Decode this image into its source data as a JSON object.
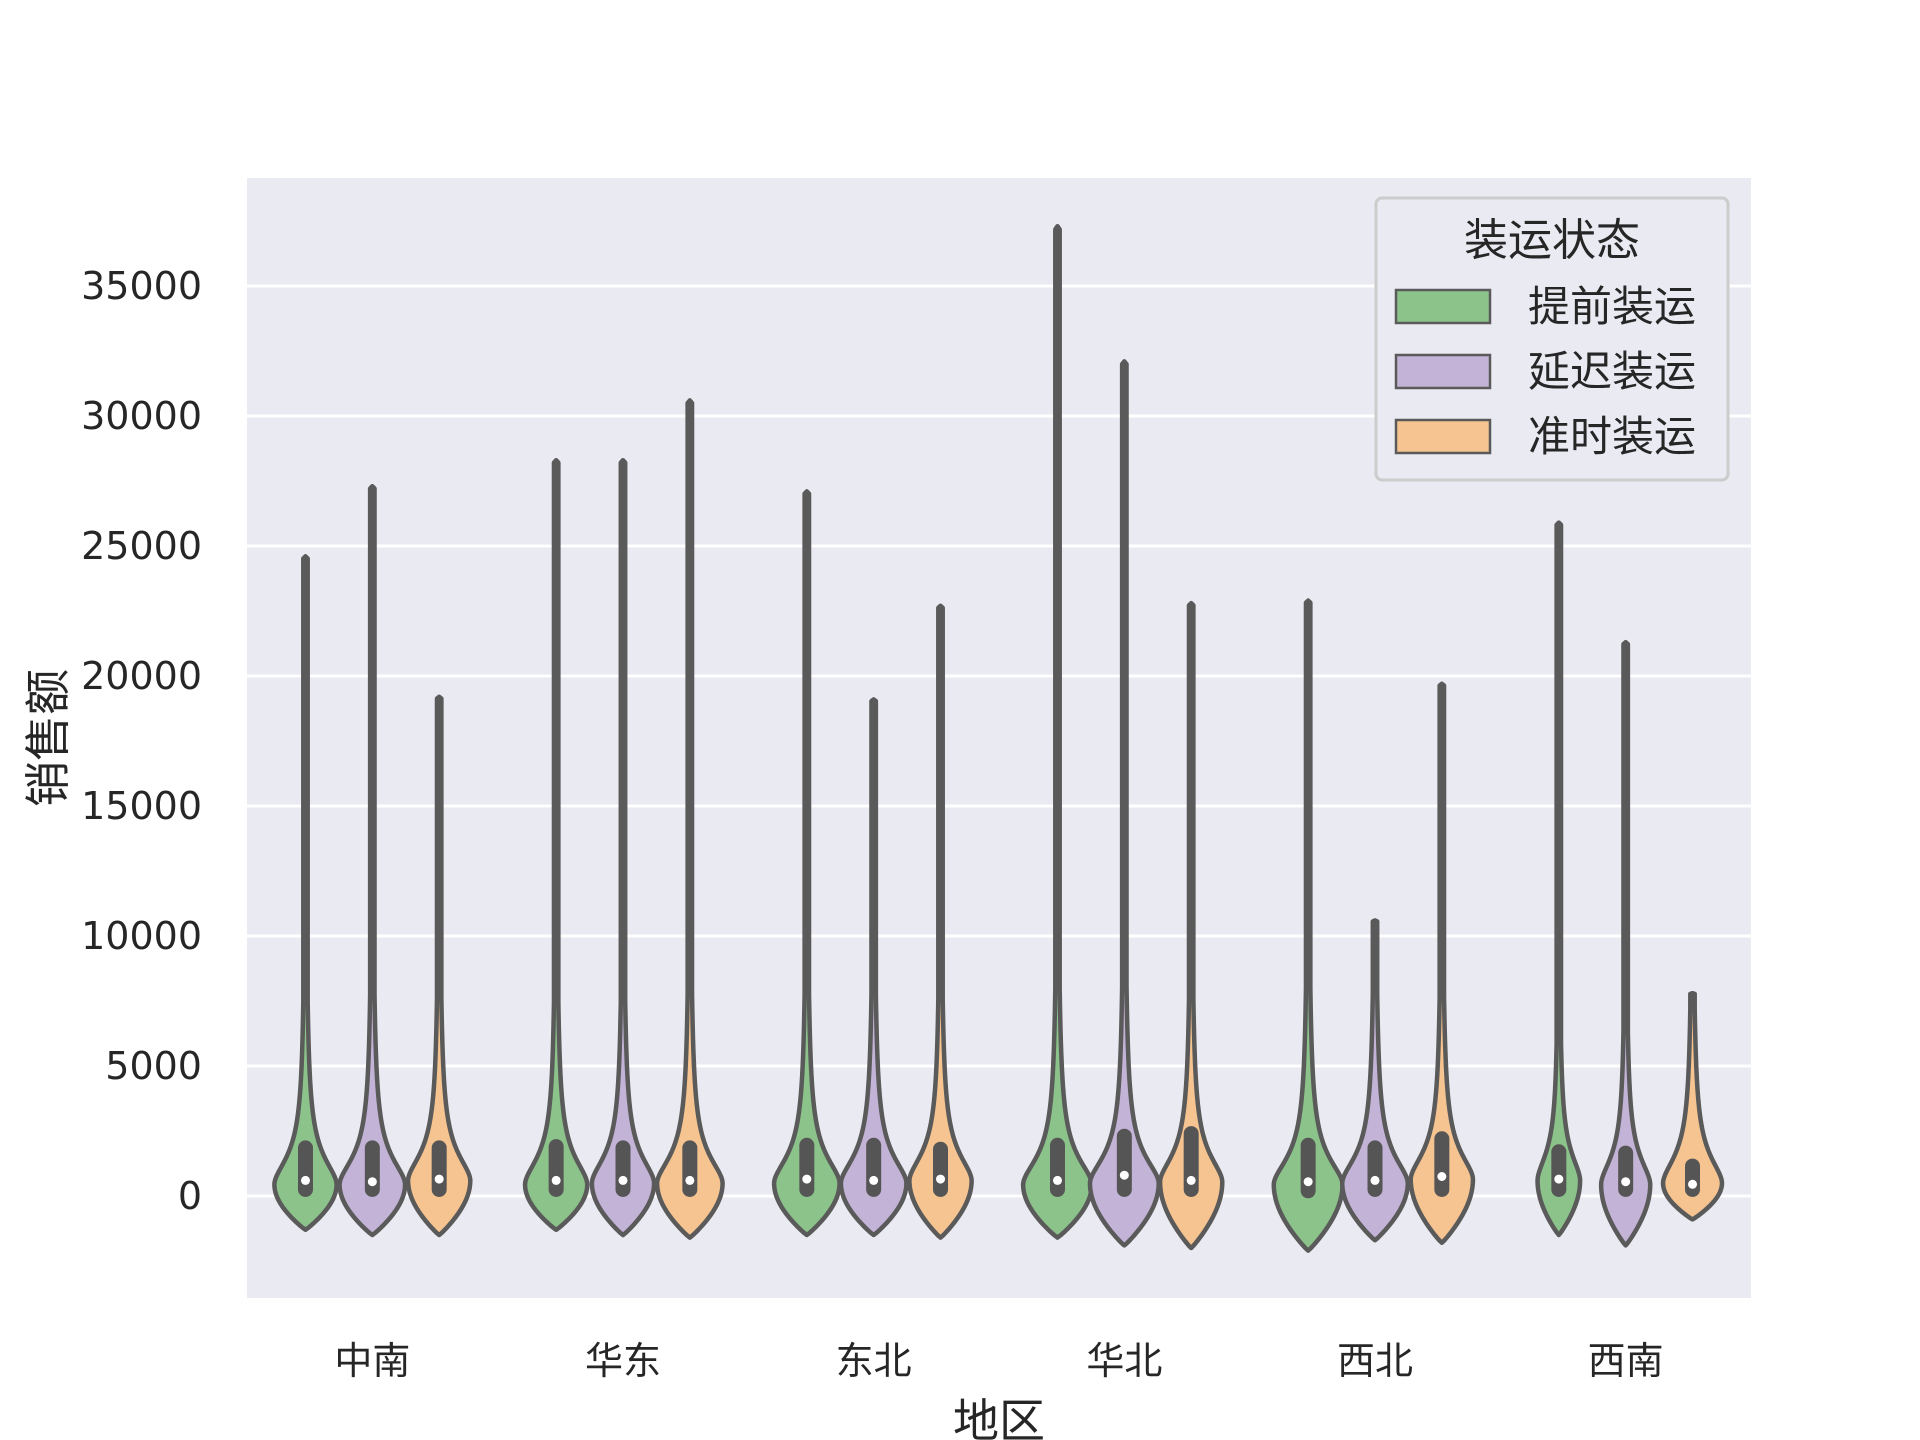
{
  "chart_data": {
    "type": "violin",
    "xlabel": "地区",
    "ylabel": "销售额",
    "categories": [
      "中南",
      "华东",
      "东北",
      "华北",
      "西北",
      "西南"
    ],
    "yticks": [
      0,
      5000,
      10000,
      15000,
      20000,
      25000,
      30000,
      35000
    ],
    "ylim": [
      -4000,
      39000
    ],
    "grid": true,
    "legend": {
      "title": "装运状态",
      "position": "top-right"
    },
    "series": [
      {
        "name": "提前装运",
        "color": "#8bc38a",
        "max": [
          24600,
          28300,
          27100,
          37300,
          22900,
          25900
        ],
        "min": [
          -1300,
          -1300,
          -1500,
          -1600,
          -2100,
          -1500
        ],
        "median": [
          600,
          600,
          650,
          600,
          550,
          650
        ],
        "q1": [
          250,
          250,
          250,
          250,
          200,
          250
        ],
        "q3": [
          1850,
          1900,
          1950,
          1950,
          1950,
          1700
        ],
        "peak": [
          450,
          450,
          500,
          450,
          450,
          600
        ],
        "width": [
          0.95,
          0.95,
          1.0,
          1.05,
          1.05,
          0.65
        ]
      },
      {
        "name": "延迟装运",
        "color": "#c3b3d6",
        "max": [
          27300,
          28300,
          19100,
          32100,
          10600,
          21300
        ],
        "min": [
          -1500,
          -1500,
          -1500,
          -1900,
          -1700,
          -1900
        ],
        "median": [
          550,
          600,
          600,
          800,
          600,
          550
        ],
        "q1": [
          250,
          250,
          250,
          250,
          250,
          250
        ],
        "q3": [
          1850,
          1850,
          1950,
          2300,
          1850,
          1650
        ],
        "peak": [
          450,
          500,
          500,
          500,
          500,
          450
        ],
        "width": [
          1.0,
          0.95,
          1.0,
          1.05,
          1.0,
          0.75
        ]
      },
      {
        "name": "准时装运",
        "color": "#f5c491",
        "max": [
          19200,
          30600,
          22700,
          22800,
          19700,
          7800
        ],
        "min": [
          -1500,
          -1600,
          -1600,
          -2000,
          -1800,
          -900
        ],
        "median": [
          650,
          600,
          650,
          600,
          750,
          450
        ],
        "q1": [
          250,
          250,
          250,
          250,
          250,
          250
        ],
        "q3": [
          1850,
          1850,
          1800,
          2400,
          2200,
          1150
        ],
        "peak": [
          600,
          500,
          600,
          550,
          650,
          500
        ],
        "width": [
          0.95,
          1.0,
          0.95,
          0.95,
          0.95,
          0.9
        ]
      }
    ]
  }
}
